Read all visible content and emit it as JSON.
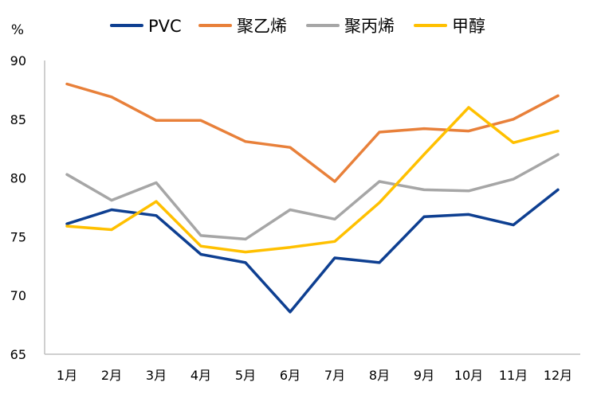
{
  "chart_data": {
    "type": "line",
    "ylabel": "%",
    "ylim": [
      65,
      90
    ],
    "yticks": [
      65,
      70,
      75,
      80,
      85,
      90
    ],
    "categories": [
      "1月",
      "2月",
      "3月",
      "4月",
      "5月",
      "6月",
      "7月",
      "8月",
      "9月",
      "10月",
      "11月",
      "12月"
    ],
    "grid": false,
    "legend_position": "top",
    "series": [
      {
        "name": "PVC",
        "color": "#0E3F91",
        "values": [
          76.1,
          77.3,
          76.8,
          73.5,
          72.8,
          68.6,
          73.2,
          72.8,
          76.7,
          76.9,
          76.0,
          79.0
        ]
      },
      {
        "name": "聚乙烯",
        "color": "#E8803A",
        "values": [
          88.0,
          86.9,
          84.9,
          84.9,
          83.1,
          82.6,
          79.7,
          83.9,
          84.2,
          84.0,
          85.0,
          87.0
        ]
      },
      {
        "name": "聚丙烯",
        "color": "#A6A6A6",
        "values": [
          80.3,
          78.1,
          79.6,
          75.1,
          74.8,
          77.3,
          76.5,
          79.7,
          79.0,
          78.9,
          79.9,
          82.0
        ]
      },
      {
        "name": "甲醇",
        "color": "#FFC000",
        "values": [
          75.9,
          75.6,
          78.0,
          74.2,
          73.7,
          74.1,
          74.6,
          77.9,
          82.0,
          86.0,
          83.0,
          84.0
        ]
      }
    ]
  }
}
